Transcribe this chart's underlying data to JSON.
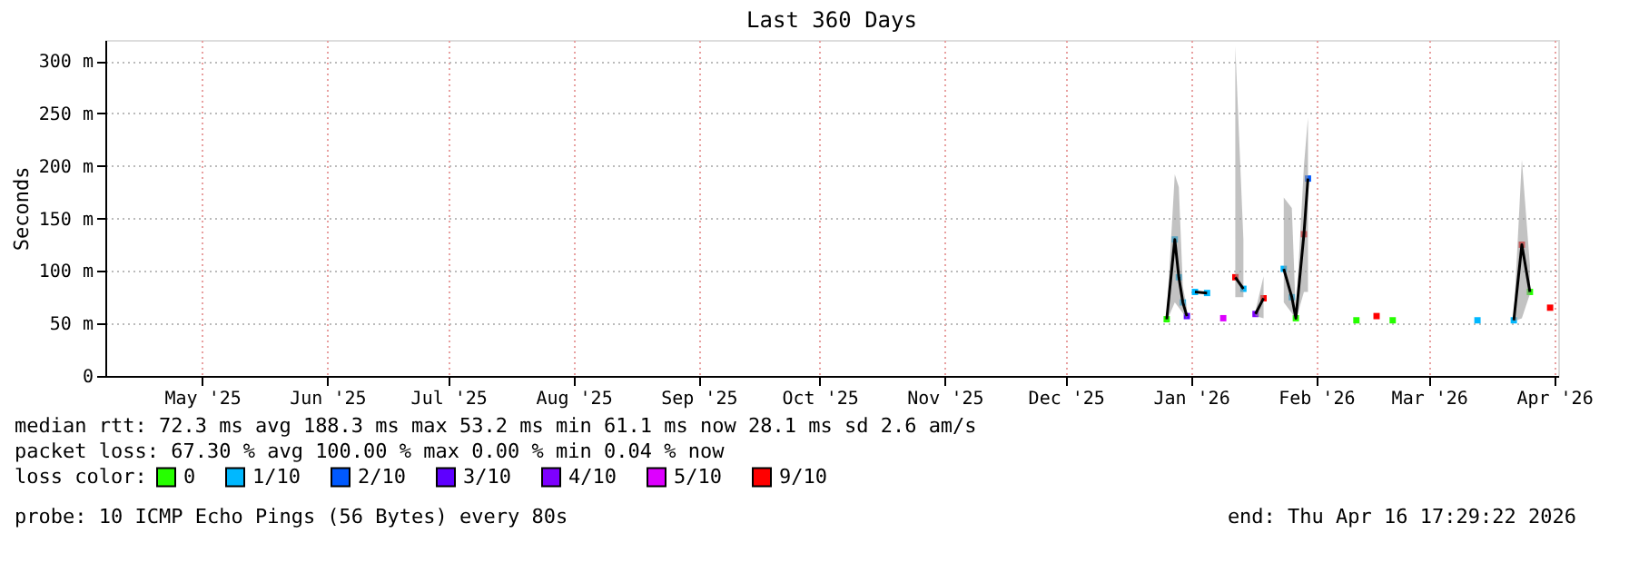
{
  "chart_data": {
    "type": "line",
    "title": "Last 360 Days",
    "ylabel": "Seconds",
    "xlim": [
      "2025-04-21",
      "2026-04-16"
    ],
    "xticks": [
      {
        "value": "2025-05-15",
        "label": "May '25"
      },
      {
        "value": "2025-06-15",
        "label": "Jun '25"
      },
      {
        "value": "2025-07-15",
        "label": "Jul '25"
      },
      {
        "value": "2025-08-15",
        "label": "Aug '25"
      },
      {
        "value": "2025-09-15",
        "label": "Sep '25"
      },
      {
        "value": "2025-10-15",
        "label": "Oct '25"
      },
      {
        "value": "2025-11-15",
        "label": "Nov '25"
      },
      {
        "value": "2025-12-15",
        "label": "Dec '25"
      },
      {
        "value": "2026-01-15",
        "label": "Jan '26"
      },
      {
        "value": "2026-02-15",
        "label": "Feb '26"
      },
      {
        "value": "2026-03-15",
        "label": "Mar '26"
      },
      {
        "value": "2026-04-15",
        "label": "Apr '26"
      }
    ],
    "ylim": [
      0,
      320
    ],
    "yticks": [
      0,
      {
        "value": 50,
        "label": "50 m"
      },
      {
        "value": 100,
        "label": "100 m"
      },
      {
        "value": 150,
        "label": "150 m"
      },
      {
        "value": 200,
        "label": "200 m"
      },
      {
        "value": 250,
        "label": "250 m"
      },
      {
        "value": 300,
        "label": "300 m"
      }
    ],
    "grid": true,
    "legend": "bottom left",
    "legend_title": "loss color:",
    "series": [
      {
        "color": "#000000",
        "x": [
          "2026-01-09",
          "2026-01-11",
          "2026-01-12",
          "2026-01-13",
          "2026-01-14",
          "2026-01-15",
          "2026-01-16",
          "2026-01-19",
          "2026-01-20",
          "2026-01-26",
          "2026-01-28",
          "2026-01-30",
          "2026-01-31",
          "2026-02-02",
          "2026-02-05",
          "2026-02-07",
          "2026-02-09",
          "2026-02-10",
          "2026-02-12",
          "2026-02-13",
          "2026-02-20",
          "2026-04-05",
          "2026-04-07",
          "2026-04-09"
        ],
        "values": [
          54,
          130,
          94,
          70,
          57,
          null,
          80,
          79,
          null,
          94,
          83,
          null,
          59,
          74,
          null,
          102,
          75,
          55,
          135,
          188,
          null,
          53,
          125,
          80
        ],
        "lower": [
          52,
          70,
          65,
          60,
          55,
          null,
          null,
          null,
          null,
          75,
          75,
          null,
          57,
          55,
          null,
          70,
          60,
          53,
          80,
          80,
          null,
          52,
          55,
          78
        ],
        "upper": [
          58,
          192,
          180,
          85,
          65,
          null,
          null,
          null,
          null,
          314,
          130,
          null,
          62,
          95,
          null,
          170,
          160,
          58,
          200,
          246,
          null,
          56,
          206,
          105
        ]
      },
      {
        "type": "scatter",
        "name": "0",
        "color": "#26ff00",
        "x": [
          "2026-01-09",
          "2026-02-10",
          "2026-02-25",
          "2026-03-06",
          "2026-04-09"
        ],
        "values": [
          54,
          55,
          53,
          53,
          80
        ]
      },
      {
        "type": "scatter",
        "name": "1/10",
        "color": "#00b8ff",
        "x": [
          "2026-01-11",
          "2026-01-12",
          "2026-01-13",
          "2026-01-16",
          "2026-01-19",
          "2026-01-28",
          "2026-02-07",
          "2026-02-09",
          "2026-03-27",
          "2026-04-05"
        ],
        "values": [
          130,
          94,
          70,
          80,
          79,
          83,
          102,
          75,
          53,
          53
        ]
      },
      {
        "type": "scatter",
        "name": "2/10",
        "color": "#0059ff",
        "x": [
          "2026-02-13"
        ],
        "values": [
          188
        ]
      },
      {
        "type": "scatter",
        "name": "3/10",
        "color": "#5e00ff",
        "x": [
          "2026-01-14"
        ],
        "values": [
          57
        ]
      },
      {
        "type": "scatter",
        "name": "4/10",
        "color": "#7e00ff",
        "x": [
          "2026-01-31"
        ],
        "values": [
          59
        ]
      },
      {
        "type": "scatter",
        "name": "5/10",
        "color": "#dd00ff",
        "x": [
          "2026-01-23"
        ],
        "values": [
          55
        ]
      },
      {
        "type": "scatter",
        "name": "9/10",
        "color": "#ff0000",
        "x": [
          "2026-01-26",
          "2026-02-02",
          "2026-02-12",
          "2026-03-02",
          "2026-04-07",
          "2026-04-14"
        ],
        "values": [
          94,
          74,
          135,
          57,
          125,
          65
        ]
      }
    ],
    "annotations": [
      "median rtt:  72.3 ms avg  188.3 ms max  53.2 ms min  61.1 ms now  28.1 ms sd  2.6   am/s",
      "packet loss: 67.30 % avg  100.00 % max  0.00 % min  0.04 % now",
      "probe:       10 ICMP Echo Pings (56 Bytes) every 80s",
      "end: Thu Apr 16 17:29:22 2026"
    ]
  }
}
